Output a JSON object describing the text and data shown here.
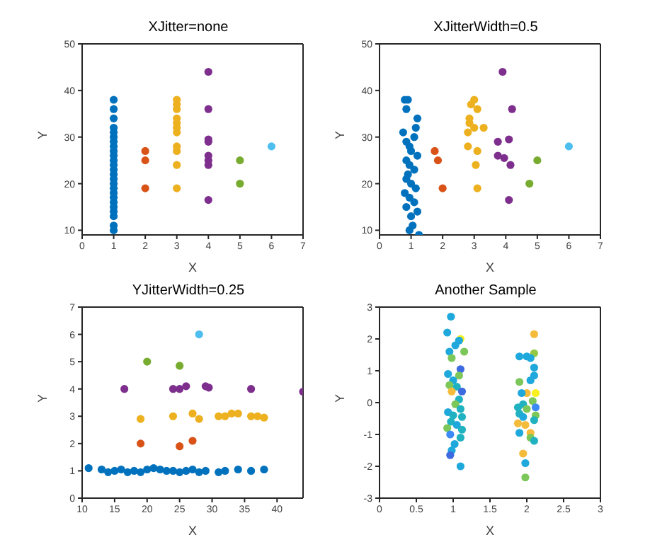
{
  "chart_data": [
    {
      "type": "scatter",
      "title": "XJitter=none",
      "xlabel": "X",
      "ylabel": "Y",
      "xlim": [
        0,
        7
      ],
      "xticks": [
        0,
        1,
        2,
        3,
        4,
        5,
        6,
        7
      ],
      "ylim": [
        9,
        50
      ],
      "yticks": [
        10,
        20,
        30,
        40,
        50
      ],
      "marker": "circle",
      "series": [
        {
          "color": "#0072bd",
          "x": [
            1,
            1,
            1,
            1,
            1,
            1,
            1,
            1,
            1,
            1,
            1,
            1,
            1,
            1,
            1,
            1,
            1,
            1,
            1,
            1,
            1,
            1,
            1,
            1,
            1
          ],
          "values": [
            10,
            11,
            13,
            14,
            15,
            16,
            17,
            18,
            19,
            20,
            21,
            22,
            23,
            24,
            25,
            26,
            27,
            28,
            29,
            30,
            31,
            32,
            34,
            36,
            38
          ]
        },
        {
          "color": "#d95319",
          "x": [
            2,
            2,
            2
          ],
          "values": [
            19,
            25,
            27
          ]
        },
        {
          "color": "#edb120",
          "x": [
            3,
            3,
            3,
            3,
            3,
            3,
            3,
            3,
            3,
            3,
            3
          ],
          "values": [
            19,
            24,
            27,
            28,
            31,
            32,
            33,
            34,
            36,
            37,
            38
          ]
        },
        {
          "color": "#7e2f8e",
          "x": [
            4,
            4,
            4,
            4,
            4,
            4,
            4,
            4
          ],
          "values": [
            16.5,
            24,
            25,
            26,
            29,
            29.5,
            36,
            44
          ]
        },
        {
          "color": "#77ac30",
          "x": [
            5,
            5
          ],
          "values": [
            20,
            25
          ]
        },
        {
          "color": "#4dbeee",
          "x": [
            6
          ],
          "values": [
            28
          ]
        }
      ]
    },
    {
      "type": "scatter",
      "title": "XJitterWidth=0.5",
      "xlabel": "X",
      "ylabel": "Y",
      "xlim": [
        0,
        7
      ],
      "xticks": [
        0,
        1,
        2,
        3,
        4,
        5,
        6,
        7
      ],
      "ylim": [
        9,
        50
      ],
      "yticks": [
        10,
        20,
        30,
        40,
        50
      ],
      "marker": "circle",
      "series": [
        {
          "color": "#0072bd",
          "x": [
            0.8,
            0.9,
            0.85,
            1.2,
            1.15,
            0.75,
            1.1,
            0.85,
            0.95,
            1.0,
            1.2,
            0.85,
            0.95,
            1.1,
            0.9,
            0.85,
            1.0,
            1.15,
            0.8,
            0.95,
            1.1,
            0.85,
            1.2,
            1.0,
            1.05,
            0.95,
            1.25
          ],
          "values": [
            38,
            38,
            36,
            34,
            32,
            31,
            30,
            29,
            28,
            27,
            26,
            25,
            24,
            23,
            22,
            21,
            20,
            19,
            18,
            17,
            16,
            15,
            14,
            13,
            11,
            10,
            9
          ]
        },
        {
          "color": "#d95319",
          "x": [
            1.75,
            1.85,
            2.0
          ],
          "values": [
            27,
            25,
            19
          ]
        },
        {
          "color": "#edb120",
          "x": [
            2.8,
            3.1,
            3.05,
            3.1,
            3.0,
            2.9,
            2.85,
            2.85,
            3.0,
            3.3,
            2.8,
            3.1
          ],
          "values": [
            28,
            27,
            24,
            19,
            38,
            37,
            34,
            33,
            32,
            32,
            31,
            36
          ]
        },
        {
          "color": "#7e2f8e",
          "x": [
            3.9,
            4.2,
            4.1,
            3.75,
            3.75,
            3.95,
            4.15,
            4.1
          ],
          "values": [
            44,
            36,
            29.5,
            29,
            26,
            25.5,
            24,
            16.5
          ]
        },
        {
          "color": "#77ac30",
          "x": [
            5.0,
            4.75
          ],
          "values": [
            25,
            20
          ]
        },
        {
          "color": "#4dbeee",
          "x": [
            6.0
          ],
          "values": [
            28
          ]
        }
      ]
    },
    {
      "type": "scatter",
      "title": "YJitterWidth=0.25",
      "xlabel": "X",
      "ylabel": "Y",
      "xlim": [
        10,
        44
      ],
      "xticks": [
        10,
        15,
        20,
        25,
        30,
        35,
        40
      ],
      "ylim": [
        0,
        7
      ],
      "yticks": [
        0,
        1,
        2,
        3,
        4,
        5,
        6,
        7
      ],
      "marker": "circle",
      "series": [
        {
          "color": "#0072bd",
          "x": [
            11,
            13,
            14,
            15,
            16,
            17,
            18,
            19,
            20,
            21,
            22,
            23,
            24,
            25,
            26,
            27,
            28,
            29,
            31,
            32,
            34,
            36,
            38
          ],
          "values": [
            1.1,
            1.05,
            0.95,
            1.0,
            1.05,
            0.95,
            1.0,
            0.95,
            1.05,
            1.1,
            1.05,
            1.0,
            1.0,
            0.95,
            1.0,
            1.05,
            0.95,
            1.0,
            0.95,
            1.0,
            1.05,
            1.0,
            1.05
          ]
        },
        {
          "color": "#d95319",
          "x": [
            19,
            25,
            27
          ],
          "values": [
            2.0,
            1.9,
            2.1
          ]
        },
        {
          "color": "#edb120",
          "x": [
            19,
            24,
            27,
            28,
            31,
            32,
            33,
            34,
            36,
            37,
            38
          ],
          "values": [
            2.9,
            3.0,
            3.1,
            2.9,
            3.0,
            3.0,
            3.1,
            3.1,
            3.0,
            3.0,
            2.95
          ]
        },
        {
          "color": "#7e2f8e",
          "x": [
            16.5,
            24,
            25,
            26,
            29,
            29.5,
            36,
            44
          ],
          "values": [
            4.0,
            4.0,
            4.0,
            4.1,
            4.1,
            4.05,
            4.0,
            3.9
          ]
        },
        {
          "color": "#77ac30",
          "x": [
            20,
            25
          ],
          "values": [
            5.0,
            4.85
          ]
        },
        {
          "color": "#4dbeee",
          "x": [
            28
          ],
          "values": [
            6.0
          ]
        }
      ]
    },
    {
      "type": "scatter",
      "title": "Another Sample",
      "xlabel": "X",
      "ylabel": "Y",
      "xlim": [
        0,
        3
      ],
      "xticks": [
        0,
        0.5,
        1,
        1.5,
        2,
        2.5,
        3
      ],
      "ylim": [
        -3,
        3
      ],
      "yticks": [
        -3,
        -2,
        -1,
        0,
        1,
        2,
        3
      ],
      "marker": "circle",
      "series": [
        {
          "x": [
            0.97,
            0.92,
            1.1,
            1.08,
            1.03,
            1.15,
            0.95,
            0.98,
            1.1,
            1.08,
            0.93,
            1.0,
            0.95,
            1.05,
            1.12,
            0.98,
            1.08,
            1.03,
            1.1,
            0.93,
            1.0,
            1.12,
            0.97,
            1.05,
            0.92,
            1.12,
            0.96,
            1.1,
            1.02,
            0.98,
            0.96,
            1.1,
            2.1,
            2.1,
            1.9,
            2.0,
            2.05,
            2.1,
            2.1,
            2.05,
            1.9,
            2.12,
            2.0,
            1.93,
            2.08,
            1.95,
            1.88,
            2.12,
            2.0,
            1.9,
            2.12,
            1.95,
            2.1,
            1.88,
            1.98,
            1.9,
            2.05,
            2.05,
            2.1,
            1.95,
            1.98,
            1.98
          ],
          "values": [
            2.7,
            2.2,
            2.0,
            1.95,
            1.8,
            1.6,
            1.6,
            1.4,
            1.05,
            0.85,
            0.9,
            0.7,
            0.55,
            0.5,
            0.35,
            0.35,
            0.1,
            -0.05,
            -0.2,
            -0.3,
            -0.4,
            -0.45,
            -0.6,
            -0.7,
            -0.8,
            -0.85,
            -1.0,
            -1.1,
            -1.3,
            -1.5,
            -1.65,
            -2.0,
            2.15,
            1.55,
            1.45,
            1.45,
            1.4,
            1.1,
            0.85,
            0.7,
            0.65,
            0.3,
            0.3,
            0.3,
            0.05,
            -0.05,
            -0.15,
            -0.15,
            -0.2,
            -0.35,
            -0.4,
            -0.45,
            -0.55,
            -0.65,
            -0.7,
            -0.95,
            -0.95,
            -1.1,
            -1.2,
            -1.6,
            -1.9,
            -2.35
          ],
          "colors": [
            "#1ea8dc",
            "#1ea8dc",
            "#f9f020",
            "#1ea8dc",
            "#1ea8dc",
            "#7bc75a",
            "#1ea8dc",
            "#7bc75a",
            "#3d6ae0",
            "#7bc75a",
            "#1ea8dc",
            "#1ea8dc",
            "#7bc75a",
            "#20b2c0",
            "#3d6ae0",
            "#f5bb3a",
            "#20b2c0",
            "#7bc75a",
            "#20b2c0",
            "#1ea8dc",
            "#20b2c0",
            "#20b2c0",
            "#20b2c0",
            "#1ea8dc",
            "#7bc75a",
            "#20b2c0",
            "#3d8af7",
            "#20b2c0",
            "#1ea8dc",
            "#1ea8dc",
            "#3d6ae0",
            "#1ea8dc",
            "#f5bb3a",
            "#95c845",
            "#1ea8dc",
            "#1ea8dc",
            "#1ea8dc",
            "#1ea8dc",
            "#1ea8dc",
            "#1ea8dc",
            "#7bc75a",
            "#f9f020",
            "#f5bb3a",
            "#1ea8dc",
            "#7bc75a",
            "#20b2c0",
            "#20b2c0",
            "#3d8af7",
            "#7bc75a",
            "#20b2c0",
            "#7bc75a",
            "#1ea8dc",
            "#20b2c0",
            "#f5bb3a",
            "#f5bb3a",
            "#1ea8dc",
            "#f5bb3a",
            "#7bc75a",
            "#20b2c0",
            "#f5bb3a",
            "#1ea8dc",
            "#7bc75a"
          ]
        }
      ]
    }
  ]
}
